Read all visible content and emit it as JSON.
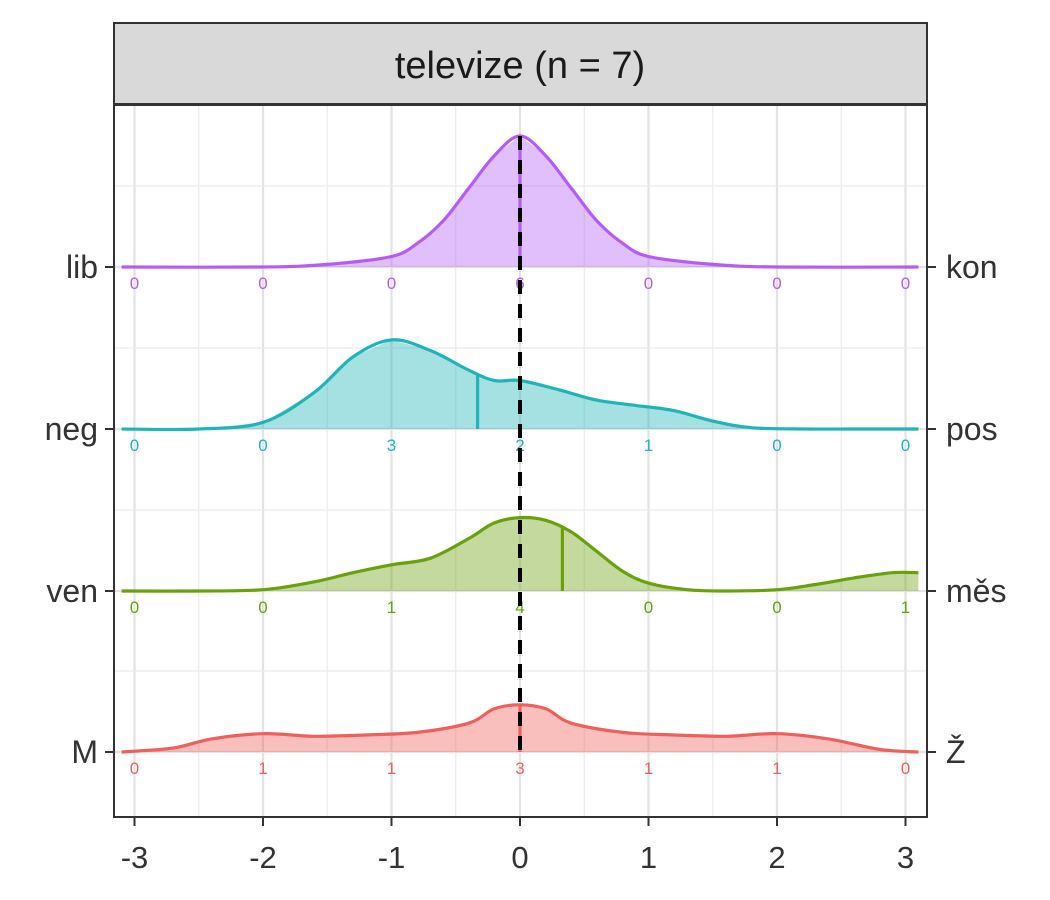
{
  "chart_data": {
    "type": "ridgeline",
    "panel_title": "televize (n = 7)",
    "xlim": [
      -3.1,
      3.1
    ],
    "x_ticks": [
      "-3",
      "-2",
      "-1",
      "0",
      "1",
      "2",
      "3"
    ],
    "x_positions": [
      -3,
      -2,
      -1,
      0,
      1,
      2,
      3
    ],
    "grid": true,
    "reference_line_x": 0,
    "series": [
      {
        "left_label": "lib",
        "right_label": "kon",
        "color": "#B35CF7",
        "counts": [
          0,
          0,
          0,
          6,
          0,
          0,
          0
        ],
        "mean": 0,
        "density": {
          "x": [
            -3.1,
            -2.0,
            -1.5,
            -1.0,
            -0.8,
            -0.6,
            -0.4,
            -0.2,
            0.0,
            0.2,
            0.4,
            0.6,
            0.8,
            1.0,
            1.5,
            2.0,
            3.1
          ],
          "y": [
            0.0,
            0.0,
            0.02,
            0.08,
            0.18,
            0.35,
            0.6,
            0.85,
            1.0,
            0.85,
            0.6,
            0.35,
            0.18,
            0.08,
            0.02,
            0.0,
            0.0
          ]
        }
      },
      {
        "left_label": "neg",
        "right_label": "pos",
        "color": "#1FB5B8",
        "counts": [
          0,
          0,
          3,
          2,
          1,
          0,
          0
        ],
        "mean": -0.33,
        "density": {
          "x": [
            -3.1,
            -2.5,
            -2.0,
            -1.6,
            -1.3,
            -1.0,
            -0.7,
            -0.4,
            -0.2,
            0.0,
            0.3,
            0.6,
            0.9,
            1.2,
            1.5,
            1.8,
            2.2,
            2.6,
            3.1
          ],
          "y": [
            0.0,
            0.0,
            0.05,
            0.28,
            0.55,
            0.68,
            0.6,
            0.45,
            0.37,
            0.37,
            0.3,
            0.22,
            0.18,
            0.14,
            0.06,
            0.01,
            0.0,
            0.0,
            0.0
          ]
        }
      },
      {
        "left_label": "ven",
        "right_label": "měs",
        "color": "#68A10A",
        "counts": [
          0,
          0,
          1,
          4,
          0,
          0,
          1
        ],
        "mean": 0.33,
        "density": {
          "x": [
            -3.1,
            -2.5,
            -2.0,
            -1.6,
            -1.3,
            -1.0,
            -0.7,
            -0.4,
            -0.2,
            0.0,
            0.2,
            0.4,
            0.6,
            0.8,
            1.0,
            1.3,
            1.6,
            2.0,
            2.3,
            2.6,
            2.9,
            3.1
          ],
          "y": [
            0.0,
            0.0,
            0.01,
            0.07,
            0.14,
            0.2,
            0.25,
            0.4,
            0.52,
            0.56,
            0.54,
            0.45,
            0.3,
            0.15,
            0.06,
            0.01,
            0.0,
            0.01,
            0.05,
            0.1,
            0.14,
            0.14
          ]
        }
      },
      {
        "left_label": "M",
        "right_label": "Ž",
        "color": "#EF5F5B",
        "counts": [
          0,
          1,
          1,
          3,
          1,
          1,
          0
        ],
        "mean": 0,
        "density": {
          "x": [
            -3.1,
            -2.7,
            -2.4,
            -2.0,
            -1.6,
            -1.2,
            -0.8,
            -0.4,
            -0.2,
            0.0,
            0.2,
            0.4,
            0.8,
            1.2,
            1.6,
            2.0,
            2.4,
            2.8,
            3.1
          ],
          "y": [
            0.0,
            0.03,
            0.1,
            0.14,
            0.12,
            0.13,
            0.15,
            0.22,
            0.33,
            0.36,
            0.33,
            0.22,
            0.15,
            0.13,
            0.12,
            0.14,
            0.1,
            0.02,
            0.0
          ]
        }
      }
    ]
  }
}
